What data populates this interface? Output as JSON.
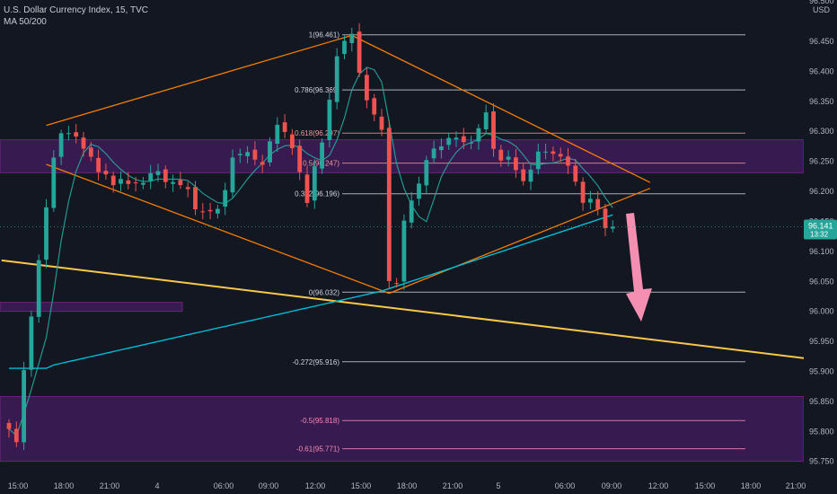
{
  "header": {
    "title": "U.S. Dollar Currency Index, 15, TVC",
    "subtitle": "MA 50/200"
  },
  "axis": {
    "currency": "USD",
    "partial_top_label": "96.500"
  },
  "price_tag": {
    "value": "96.141",
    "countdown": "13:32",
    "color": "#26a69a"
  },
  "colors": {
    "bg": "#131722",
    "up": "#26a69a",
    "down": "#ef5350",
    "ma_fast": "#26a69a",
    "ma_slow": "#00bcd4",
    "trend": "#f57c00",
    "long_trend": "#f9c846",
    "zone": "#7b1fa2",
    "arrow": "#f48fb1",
    "fib_line": "#d1d4dc"
  },
  "chart_data": {
    "type": "candlestick",
    "title": "U.S. Dollar Currency Index, 15, TVC",
    "indicators": [
      "MA 50",
      "MA 200"
    ],
    "ylim": [
      95.745,
      96.48
    ],
    "y_ticks": [
      "96.450",
      "96.400",
      "96.350",
      "96.300",
      "96.250",
      "96.200",
      "96.150",
      "96.100",
      "96.050",
      "96.000",
      "95.950",
      "95.900",
      "95.850",
      "95.800",
      "95.750"
    ],
    "x_ticks": [
      "15:00",
      "18:00",
      "21:00",
      "4",
      "06:00",
      "09:00",
      "12:00",
      "15:00",
      "18:00",
      "21:00",
      "5",
      "06:00",
      "09:00",
      "12:00",
      "15:00",
      "18:00",
      "21:00"
    ],
    "candle_slots": 82,
    "last_price": 96.141,
    "key_points": [
      {
        "slot": 0,
        "value": 95.8
      },
      {
        "slot": 1,
        "value": 95.78
      },
      {
        "slot": 2,
        "value": 95.9
      },
      {
        "slot": 3,
        "value": 96.0
      },
      {
        "slot": 4,
        "value": 96.08
      },
      {
        "slot": 5,
        "value": 96.17
      },
      {
        "slot": 6,
        "value": 96.26
      },
      {
        "slot": 7,
        "value": 96.3
      },
      {
        "slot": 10,
        "value": 96.28
      },
      {
        "slot": 12,
        "value": 96.23
      },
      {
        "slot": 16,
        "value": 96.21
      },
      {
        "slot": 20,
        "value": 96.23
      },
      {
        "slot": 24,
        "value": 96.2
      },
      {
        "slot": 26,
        "value": 96.16
      },
      {
        "slot": 28,
        "value": 96.17
      },
      {
        "slot": 30,
        "value": 96.25
      },
      {
        "slot": 32,
        "value": 96.27
      },
      {
        "slot": 34,
        "value": 96.24
      },
      {
        "slot": 36,
        "value": 96.32
      },
      {
        "slot": 38,
        "value": 96.27
      },
      {
        "slot": 40,
        "value": 96.19
      },
      {
        "slot": 42,
        "value": 96.28
      },
      {
        "slot": 44,
        "value": 96.43
      },
      {
        "slot": 46,
        "value": 96.46
      },
      {
        "slot": 48,
        "value": 96.35
      },
      {
        "slot": 50,
        "value": 96.3
      },
      {
        "slot": 51,
        "value": 96.06
      },
      {
        "slot": 52,
        "value": 96.04
      },
      {
        "slot": 53,
        "value": 96.15
      },
      {
        "slot": 55,
        "value": 96.22
      },
      {
        "slot": 57,
        "value": 96.27
      },
      {
        "slot": 59,
        "value": 96.29
      },
      {
        "slot": 61,
        "value": 96.28
      },
      {
        "slot": 63,
        "value": 96.3
      },
      {
        "slot": 64,
        "value": 96.33
      },
      {
        "slot": 65,
        "value": 96.27
      },
      {
        "slot": 67,
        "value": 96.25
      },
      {
        "slot": 69,
        "value": 96.22
      },
      {
        "slot": 71,
        "value": 96.26
      },
      {
        "slot": 73,
        "value": 96.27
      },
      {
        "slot": 75,
        "value": 96.24
      },
      {
        "slot": 77,
        "value": 96.19
      },
      {
        "slot": 79,
        "value": 96.17
      },
      {
        "slot": 80,
        "value": 96.14
      }
    ],
    "fib_levels": [
      {
        "label": "1(96.461)",
        "value": 96.461,
        "color": "#d1d4dc"
      },
      {
        "label": "0.786(96.369)",
        "value": 96.369,
        "color": "#d1d4dc"
      },
      {
        "label": "0.618(96.297)",
        "value": 96.297,
        "color": "#ef9a9a"
      },
      {
        "label": "0.5(96.247)",
        "value": 96.247,
        "color": "#ef9a9a"
      },
      {
        "label": "0.382(96.196)",
        "value": 96.196,
        "color": "#d1d4dc"
      },
      {
        "label": "0(96.032)",
        "value": 96.032,
        "color": "#d1d4dc"
      },
      {
        "label": "-0.272(95.916)",
        "value": 95.916,
        "color": "#d1d4dc"
      },
      {
        "label": "-0.5(95.818)",
        "value": 95.818,
        "color": "#f48fb1"
      },
      {
        "label": "-0.61(95.771)",
        "value": 95.771,
        "color": "#f48fb1"
      }
    ],
    "zones": [
      {
        "from": 96.231,
        "to": 96.286
      },
      {
        "from": 96.0,
        "to": 96.015,
        "note": "left only"
      },
      {
        "from": 95.75,
        "to": 95.858
      }
    ],
    "trendlines_orange": [
      [
        {
          "slot": 5,
          "v": 96.31
        },
        {
          "slot": 46,
          "v": 96.46
        }
      ],
      [
        {
          "slot": 46,
          "v": 96.46
        },
        {
          "slot": 86,
          "v": 96.215
        }
      ],
      [
        {
          "slot": 5,
          "v": 96.245
        },
        {
          "slot": 51,
          "v": 96.03
        }
      ],
      [
        {
          "slot": 51,
          "v": 96.03
        },
        {
          "slot": 86,
          "v": 96.205
        }
      ]
    ],
    "long_trendline": [
      {
        "slot": -1,
        "v": 96.085
      },
      {
        "slot": 108,
        "v": 95.92
      }
    ]
  }
}
